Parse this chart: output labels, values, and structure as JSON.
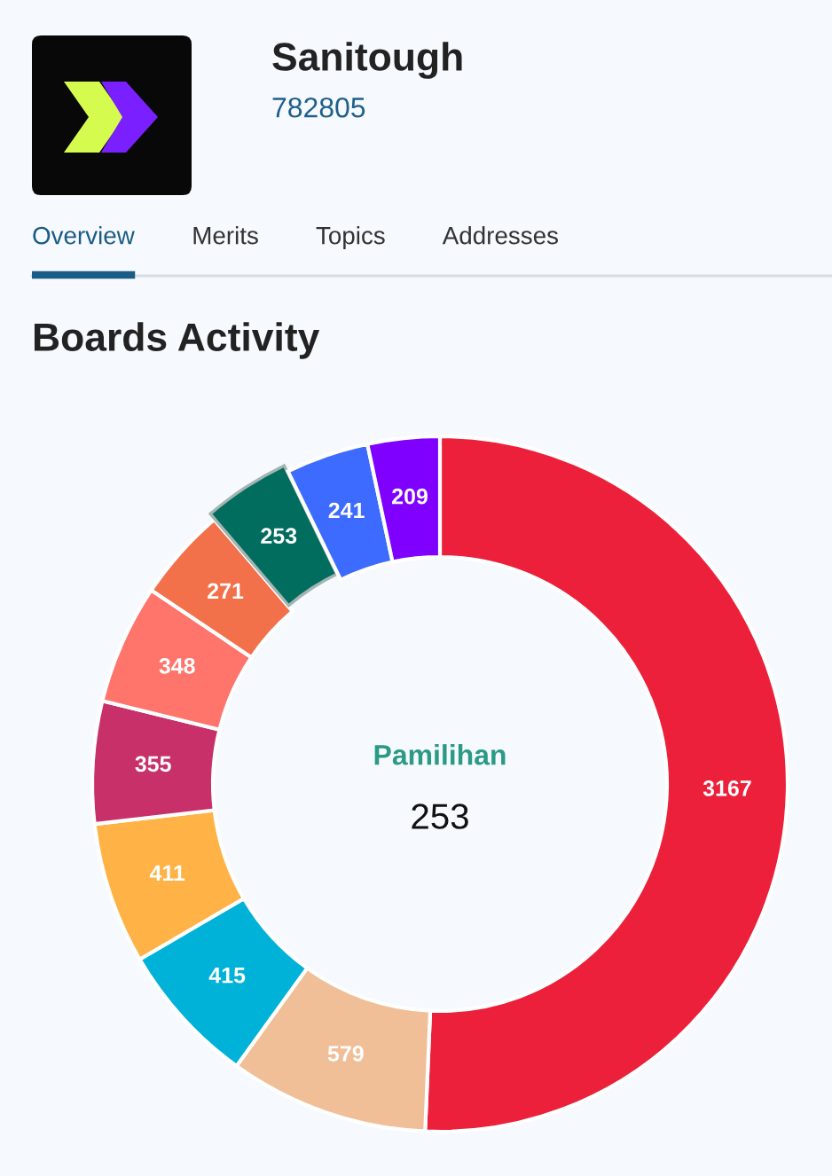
{
  "chart_data": {
    "type": "donut",
    "title": "Boards Activity",
    "categories": [
      null,
      null,
      null,
      null,
      null,
      null,
      null,
      null,
      null,
      null
    ],
    "values": [
      3167,
      579,
      415,
      411,
      355,
      348,
      271,
      253,
      241,
      209
    ],
    "colors": [
      "#ec203a",
      "#f0bf98",
      "#00b2d8",
      "#ffb347",
      "#c8306a",
      "#ff746b",
      "#f2704a",
      "#006d5f",
      "#3e6bff",
      "#7f00ff"
    ],
    "data_labels": true,
    "annotations": [
      "Sanitough",
      "782805",
      "Overview",
      "Merits",
      "Topics",
      "Addresses",
      "Pamilihan",
      "253"
    ]
  }
}
